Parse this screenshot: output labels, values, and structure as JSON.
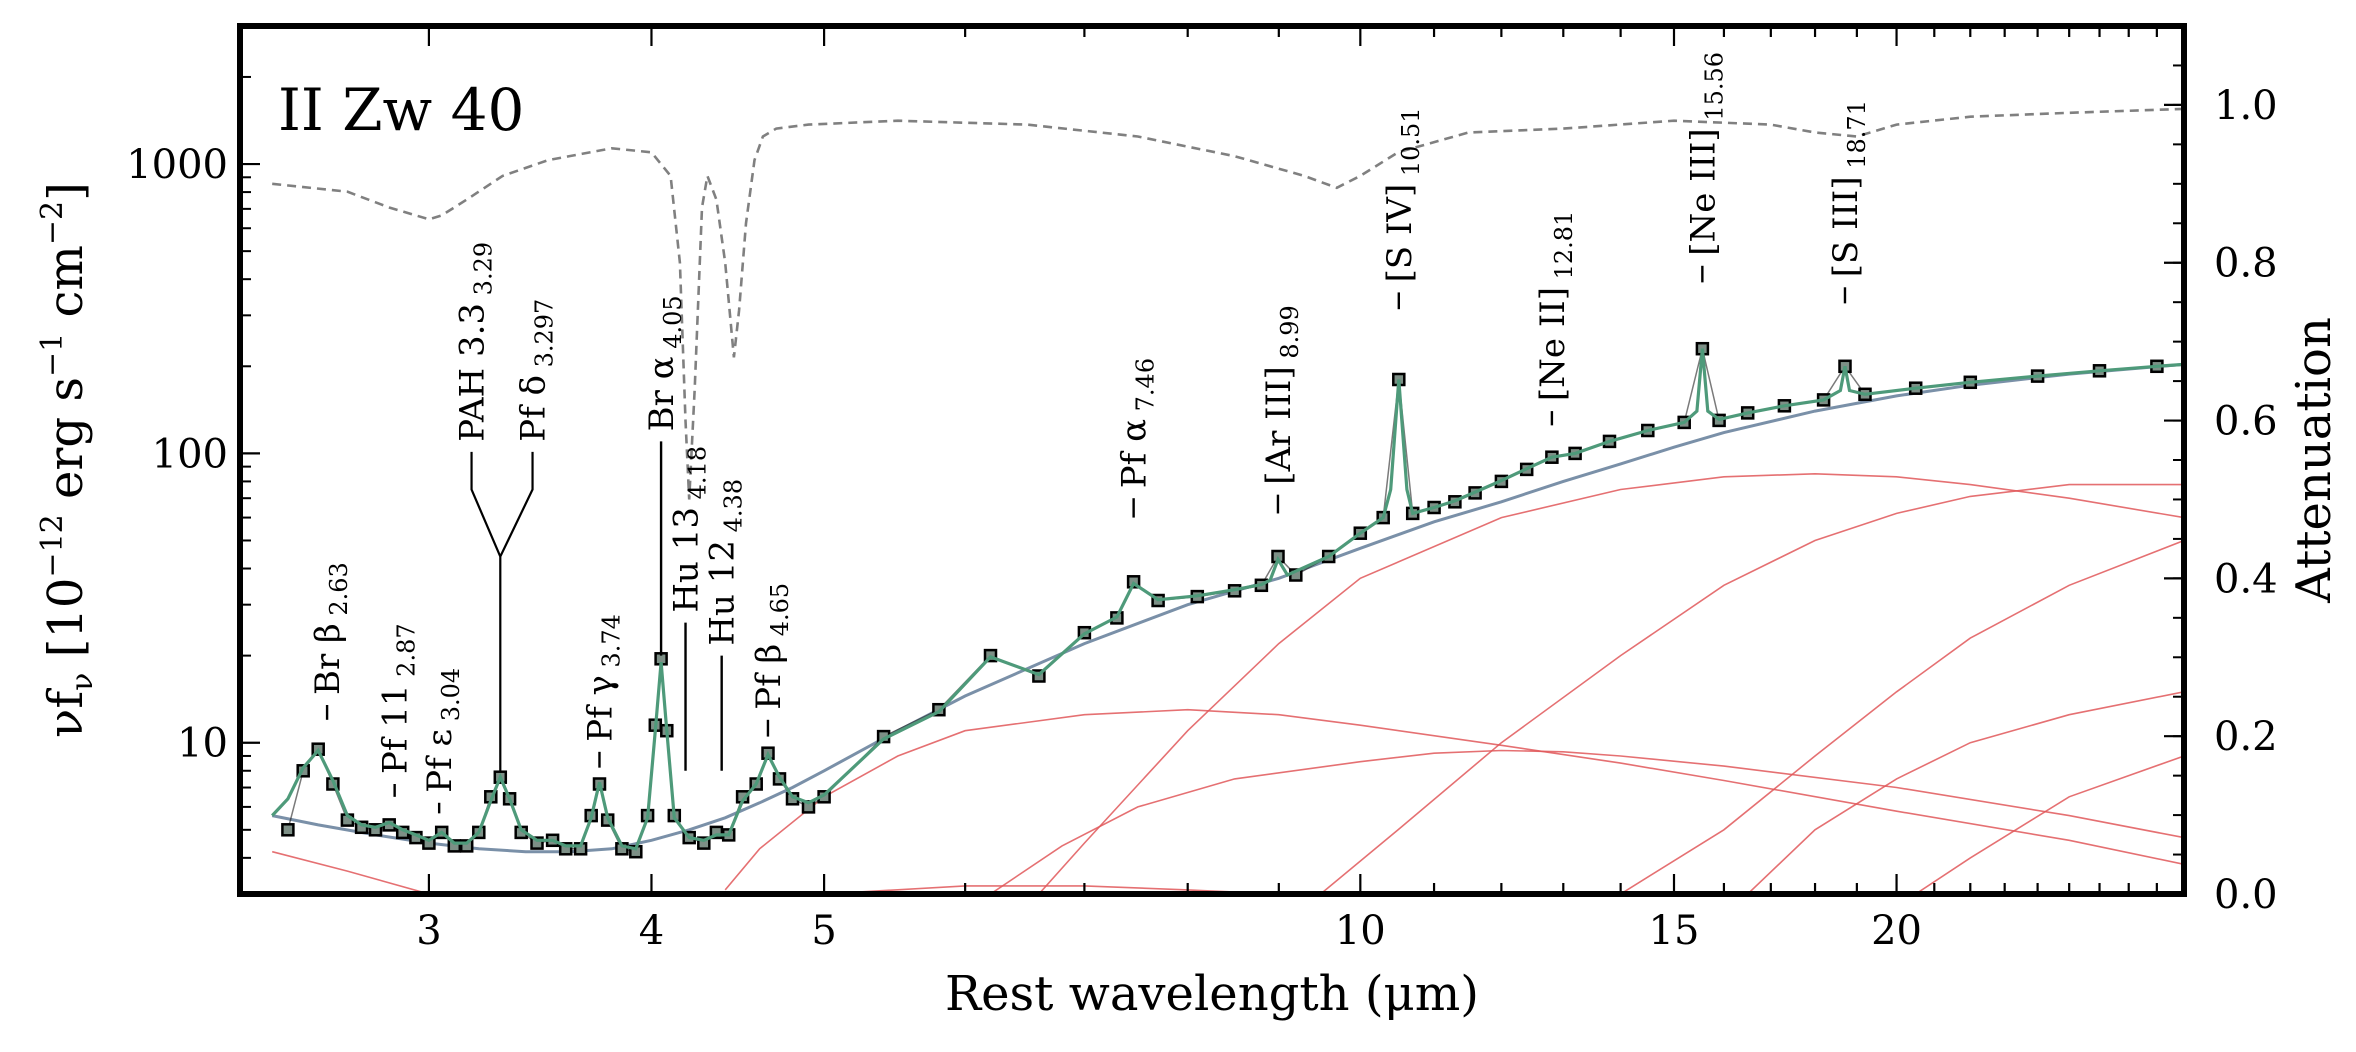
{
  "chart_data": {
    "type": "line",
    "title": "II Zw 40",
    "xlabel": "Rest wavelength (μm)",
    "ylabel": {
      "main": "νf",
      "nu_sub": "ν",
      "units_open": "[10",
      "exp1": "−12",
      "mid": "erg s",
      "exp2": "−1",
      "cm": "cm",
      "exp3": "−2",
      "units_close": "]"
    },
    "y2label": "Attenuation",
    "x_scale": "log",
    "y_scale": "log",
    "xlim": [
      2.35,
      29.0
    ],
    "ylim": [
      3.0,
      3000
    ],
    "y2lim": [
      0.0,
      1.1
    ],
    "x_ticks": [
      3,
      4,
      5,
      10,
      15,
      20
    ],
    "y_ticks": [
      {
        "value": 10,
        "label": "10"
      },
      {
        "value": 100,
        "label": "100"
      },
      {
        "value": 1000,
        "label": "1000"
      }
    ],
    "y2_ticks": [
      "0.0",
      "0.2",
      "0.4",
      "0.6",
      "0.8",
      "1.0"
    ],
    "grid": false,
    "colors": {
      "data": "#000000",
      "model": "#4e9a7a",
      "continuum": "#7a90a8",
      "features": "#6e9fce",
      "dust": "#e15759",
      "attenuation": "#808080",
      "pah": "#8a6bbe"
    },
    "series": [
      {
        "name": "data",
        "style": "markers",
        "x": [
          2.5,
          2.55,
          2.6,
          2.65,
          2.7,
          2.75,
          2.8,
          2.85,
          2.9,
          2.95,
          3.0,
          3.05,
          3.1,
          3.15,
          3.2,
          3.25,
          3.29,
          3.33,
          3.38,
          3.45,
          3.52,
          3.58,
          3.65,
          3.7,
          3.74,
          3.78,
          3.85,
          3.92,
          3.98,
          4.02,
          4.05,
          4.08,
          4.12,
          4.2,
          4.28,
          4.35,
          4.42,
          4.5,
          4.58,
          4.65,
          4.72,
          4.8,
          4.9,
          5.0,
          5.4,
          5.8,
          6.2,
          6.6,
          7.0,
          7.3,
          7.46,
          7.7,
          8.1,
          8.5,
          8.8,
          8.99,
          9.2,
          9.6,
          10.0,
          10.3,
          10.51,
          10.7,
          11.0,
          11.3,
          11.6,
          12.0,
          12.4,
          12.81,
          13.2,
          13.8,
          14.5,
          15.2,
          15.56,
          15.9,
          16.5,
          17.3,
          18.2,
          18.71,
          19.2,
          20.5,
          22.0,
          24.0,
          26.0,
          28.0
        ],
        "y": [
          5.0,
          8.0,
          9.5,
          7.2,
          5.4,
          5.1,
          5.0,
          5.2,
          4.9,
          4.7,
          4.5,
          4.9,
          4.4,
          4.4,
          4.9,
          6.5,
          7.6,
          6.4,
          4.9,
          4.5,
          4.6,
          4.3,
          4.3,
          5.6,
          7.2,
          5.4,
          4.3,
          4.2,
          5.6,
          11.5,
          19.5,
          11.0,
          5.6,
          4.7,
          4.5,
          4.9,
          4.8,
          6.5,
          7.2,
          9.2,
          7.5,
          6.4,
          6.0,
          6.5,
          10.5,
          13.0,
          20.0,
          17.0,
          24.0,
          27.0,
          36.0,
          31.0,
          32.0,
          33.5,
          35.0,
          44.0,
          38.0,
          44.0,
          53.0,
          60.0,
          180.0,
          62.0,
          65.0,
          68.0,
          73.0,
          80.0,
          88.0,
          97.0,
          100.0,
          110.0,
          120.0,
          128.0,
          230.0,
          130.0,
          138.0,
          146.0,
          153.0,
          200.0,
          160.0,
          168.0,
          176.0,
          185.0,
          193.0,
          200.0
        ]
      },
      {
        "name": "model",
        "style": "line",
        "x": [
          2.45,
          2.5,
          2.55,
          2.6,
          2.65,
          2.7,
          2.75,
          2.8,
          2.85,
          2.9,
          2.95,
          3.0,
          3.05,
          3.1,
          3.15,
          3.2,
          3.25,
          3.29,
          3.33,
          3.38,
          3.45,
          3.52,
          3.58,
          3.65,
          3.7,
          3.74,
          3.78,
          3.85,
          3.92,
          3.98,
          4.02,
          4.05,
          4.08,
          4.12,
          4.2,
          4.28,
          4.35,
          4.42,
          4.5,
          4.58,
          4.65,
          4.72,
          4.8,
          4.9,
          5.0,
          5.4,
          5.8,
          6.2,
          6.6,
          7.0,
          7.3,
          7.46,
          7.7,
          8.1,
          8.5,
          8.8,
          8.9,
          8.99,
          9.1,
          9.6,
          10.0,
          10.3,
          10.4,
          10.51,
          10.62,
          10.7,
          11.0,
          11.3,
          11.6,
          12.0,
          12.4,
          12.81,
          13.2,
          13.8,
          14.5,
          15.2,
          15.45,
          15.56,
          15.67,
          15.9,
          16.5,
          17.3,
          18.2,
          18.6,
          18.71,
          18.82,
          19.2,
          20.5,
          22.0,
          24.0,
          26.0,
          28.0,
          29.0
        ],
        "y": [
          5.6,
          6.4,
          8.2,
          9.4,
          7.4,
          5.6,
          5.2,
          5.1,
          5.3,
          5.0,
          4.8,
          4.6,
          4.9,
          4.5,
          4.5,
          4.9,
          6.3,
          7.6,
          6.4,
          5.0,
          4.6,
          4.6,
          4.4,
          4.4,
          5.5,
          7.3,
          5.5,
          4.4,
          4.3,
          5.5,
          11.0,
          19.0,
          11.0,
          5.5,
          4.7,
          4.6,
          4.8,
          4.8,
          6.3,
          7.2,
          9.1,
          7.6,
          6.5,
          6.2,
          6.6,
          10.3,
          12.8,
          19.8,
          17.2,
          23.8,
          27.2,
          35.5,
          31.2,
          32.2,
          33.8,
          35.2,
          36.5,
          43.0,
          38.0,
          44.0,
          53.0,
          60.0,
          75.0,
          180.0,
          75.0,
          62.0,
          65.0,
          68.5,
          73.5,
          80.5,
          88.5,
          97.0,
          100.0,
          110.0,
          120.0,
          128.0,
          140.0,
          230.0,
          140.0,
          131.0,
          138.0,
          146.0,
          153.0,
          165.0,
          200.0,
          165.0,
          160.0,
          168.0,
          176.0,
          185.0,
          193.0,
          200.0,
          203.0
        ]
      },
      {
        "name": "continuum",
        "style": "line",
        "x": [
          2.45,
          2.6,
          2.8,
          3.0,
          3.2,
          3.4,
          3.6,
          3.8,
          4.0,
          4.2,
          4.4,
          4.6,
          4.8,
          5.0,
          5.5,
          6.0,
          7.0,
          8.0,
          9.0,
          10.0,
          11.0,
          12.0,
          13.0,
          14.0,
          15.0,
          16.0,
          18.0,
          20.0,
          22.0,
          25.0,
          29.0
        ],
        "y": [
          5.6,
          5.2,
          4.8,
          4.5,
          4.3,
          4.2,
          4.2,
          4.3,
          4.6,
          5.0,
          5.5,
          6.2,
          7.0,
          8.0,
          11.0,
          14.5,
          22.0,
          30.0,
          37.0,
          47.0,
          58.0,
          68.0,
          80.0,
          92.0,
          105.0,
          118.0,
          140.0,
          158.0,
          172.0,
          188.0,
          203.0
        ]
      },
      {
        "name": "attenuation",
        "style": "dashed",
        "axis": "y2",
        "x": [
          2.45,
          2.7,
          2.85,
          2.95,
          3.0,
          3.05,
          3.15,
          3.3,
          3.5,
          3.8,
          4.0,
          4.1,
          4.15,
          4.18,
          4.2,
          4.23,
          4.27,
          4.3,
          4.35,
          4.4,
          4.45,
          4.48,
          4.52,
          4.57,
          4.62,
          4.7,
          4.9,
          5.5,
          6.5,
          7.5,
          8.5,
          9.3,
          9.7,
          10.0,
          10.5,
          11.5,
          13.0,
          15.0,
          17.0,
          18.0,
          19.0,
          20.0,
          22.0,
          25.0,
          29.0
        ],
        "y": [
          0.9,
          0.89,
          0.87,
          0.86,
          0.855,
          0.86,
          0.88,
          0.91,
          0.93,
          0.945,
          0.94,
          0.91,
          0.8,
          0.6,
          0.5,
          0.64,
          0.87,
          0.91,
          0.88,
          0.8,
          0.68,
          0.74,
          0.85,
          0.93,
          0.96,
          0.97,
          0.975,
          0.98,
          0.975,
          0.96,
          0.935,
          0.91,
          0.895,
          0.91,
          0.94,
          0.965,
          0.97,
          0.98,
          0.975,
          0.965,
          0.96,
          0.975,
          0.985,
          0.99,
          0.995
        ]
      },
      {
        "name": "dust1",
        "style": "thin-line",
        "x": [
          2.45,
          2.7,
          3.0,
          3.4,
          4.0,
          5.0,
          6.0,
          7.0,
          8.0,
          9.0,
          10.0,
          12.0,
          14.0,
          16.0,
          20.0,
          25.0,
          29.0
        ],
        "y": [
          4.2,
          3.6,
          3.0,
          2.5,
          2.5,
          3.0,
          3.2,
          3.2,
          3.1,
          3.0,
          2.9,
          2.8,
          2.7,
          2.6,
          2.4,
          2.2,
          2.0
        ]
      },
      {
        "name": "dust2",
        "style": "thin-line",
        "x": [
          4.4,
          4.6,
          5.0,
          5.5,
          6.0,
          7.0,
          8.0,
          9.0,
          10.0,
          12.0,
          14.0,
          16.0,
          20.0,
          25.0,
          29.0
        ],
        "y": [
          3.1,
          4.3,
          6.5,
          9.0,
          11.0,
          12.5,
          13.0,
          12.5,
          11.5,
          9.8,
          8.5,
          7.4,
          5.8,
          4.6,
          3.8
        ]
      },
      {
        "name": "dust3",
        "style": "thin-line",
        "x": [
          6.2,
          6.8,
          7.5,
          8.5,
          10.0,
          11.0,
          12.0,
          13.0,
          14.0,
          16.0,
          20.0,
          25.0,
          29.0
        ],
        "y": [
          3.0,
          4.4,
          6.0,
          7.5,
          8.6,
          9.2,
          9.4,
          9.3,
          9.0,
          8.3,
          7.0,
          5.6,
          4.7
        ]
      },
      {
        "name": "dust4",
        "style": "thin-line",
        "x": [
          6.6,
          7.0,
          8.0,
          9.0,
          10.0,
          12.0,
          14.0,
          16.0,
          18.0,
          20.0,
          22.0,
          25.0,
          29.0
        ],
        "y": [
          3.0,
          4.5,
          11.0,
          22.0,
          37.0,
          60.0,
          75.0,
          83.0,
          85.0,
          83.0,
          78.0,
          70.0,
          60.0
        ]
      },
      {
        "name": "dust5",
        "style": "thin-line",
        "x": [
          9.5,
          10.5,
          12.0,
          14.0,
          16.0,
          18.0,
          20.0,
          22.0,
          25.0,
          29.0
        ],
        "y": [
          3.0,
          5.0,
          10.0,
          20.0,
          35.0,
          50.0,
          62.0,
          71.0,
          78.0,
          78.0
        ]
      },
      {
        "name": "dust6",
        "style": "thin-line",
        "x": [
          14.0,
          16.0,
          18.0,
          20.0,
          22.0,
          25.0,
          29.0
        ],
        "y": [
          3.0,
          5.0,
          9.0,
          15.0,
          23.0,
          35.0,
          50.0
        ]
      },
      {
        "name": "dust7",
        "style": "thin-line",
        "x": [
          16.5,
          18.0,
          20.0,
          22.0,
          25.0,
          29.0
        ],
        "y": [
          3.0,
          5.0,
          7.5,
          10.0,
          12.5,
          15.0
        ]
      },
      {
        "name": "dust8",
        "style": "thin-line",
        "x": [
          20.5,
          22.0,
          25.0,
          29.0
        ],
        "y": [
          3.0,
          4.0,
          6.5,
          9.0
        ]
      }
    ],
    "line_labels": [
      {
        "text": "Br β",
        "sub": "2.63",
        "x": 2.63,
        "y0": 12,
        "y1": 13.5,
        "kind": "tick"
      },
      {
        "text": "Pf 11",
        "sub": "2.87",
        "x": 2.87,
        "y0": 6.5,
        "y1": 7.2,
        "kind": "tick"
      },
      {
        "text": "Pf ε",
        "sub": "3.04",
        "x": 3.04,
        "y0": 5.7,
        "y1": 6.2,
        "kind": "tick"
      },
      {
        "text": "PAH 3.3",
        "sub": "3.29",
        "x": 3.29,
        "y0": 8,
        "y1": 44,
        "kind": "fork",
        "xf1": 3.17,
        "xf2": 3.43,
        "yf": 75
      },
      {
        "text": "Pf δ",
        "sub": "3.297",
        "x": 3.297,
        "y0": 8,
        "y1": 44,
        "kind": "none"
      },
      {
        "text": "Pf γ",
        "sub": "3.74",
        "x": 3.74,
        "y0": 8.2,
        "y1": 9.3,
        "kind": "tick"
      },
      {
        "text": "Br α",
        "sub": "4.05",
        "x": 4.05,
        "y0": 20,
        "y1": 110,
        "kind": "long"
      },
      {
        "text": "Hu 13",
        "sub": "4.18",
        "x": 4.18,
        "y0": 8,
        "y1": 26,
        "kind": "long"
      },
      {
        "text": "Hu 12",
        "sub": "4.38",
        "x": 4.38,
        "y0": 8,
        "y1": 20,
        "kind": "long"
      },
      {
        "text": "Pf β",
        "sub": "4.65",
        "x": 4.65,
        "y0": 10.5,
        "y1": 12,
        "kind": "tick"
      },
      {
        "text": "Pf α",
        "sub": "7.46",
        "x": 7.46,
        "y0": 60,
        "y1": 70,
        "kind": "tick"
      },
      {
        "text": "[Ar III]",
        "sub": "8.99",
        "x": 8.99,
        "y0": 62,
        "y1": 72,
        "kind": "tick"
      },
      {
        "text": "[S IV]",
        "sub": "10.51",
        "x": 10.51,
        "y0": 315,
        "y1": 360,
        "kind": "tick"
      },
      {
        "text": "[Ne II]",
        "sub": "12.81",
        "x": 12.81,
        "y0": 125,
        "y1": 140,
        "kind": "tick"
      },
      {
        "text": "[Ne III]",
        "sub": "15.56",
        "x": 15.56,
        "y0": 390,
        "y1": 445,
        "kind": "tick"
      },
      {
        "text": "[S III]",
        "sub": "18.71",
        "x": 18.71,
        "y0": 330,
        "y1": 375,
        "kind": "tick"
      }
    ]
  }
}
